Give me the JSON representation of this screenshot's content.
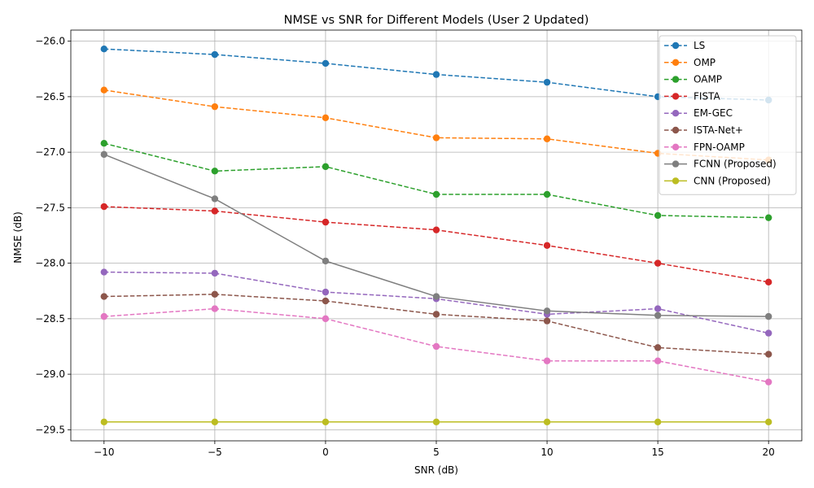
{
  "chart_data": {
    "type": "line",
    "title": "NMSE vs SNR for Different Models (User 2 Updated)",
    "xlabel": "SNR (dB)",
    "ylabel": "NMSE (dB)",
    "x": [
      -10,
      -5,
      0,
      5,
      10,
      15,
      20
    ],
    "xticks": [
      -10,
      -5,
      0,
      5,
      10,
      15,
      20
    ],
    "xtick_labels": [
      "−10",
      "−5",
      "0",
      "5",
      "10",
      "15",
      "20"
    ],
    "yticks": [
      -29.5,
      -29.0,
      -28.5,
      -28.0,
      -27.5,
      -27.0,
      -26.5,
      -26.0
    ],
    "ytick_labels": [
      "−29.5",
      "−29.0",
      "−28.5",
      "−28.0",
      "−27.5",
      "−27.0",
      "−26.5",
      "−26.0"
    ],
    "xlim": [
      -11.5,
      21.5
    ],
    "ylim": [
      -29.6,
      -25.9
    ],
    "grid": true,
    "legend_position": "top-right",
    "series": [
      {
        "name": "LS",
        "color": "#1f77b4",
        "dashed": true,
        "values": [
          -26.07,
          -26.12,
          -26.2,
          -26.3,
          -26.37,
          -26.5,
          -26.53
        ]
      },
      {
        "name": "OMP",
        "color": "#ff7f0e",
        "dashed": true,
        "values": [
          -26.44,
          -26.59,
          -26.69,
          -26.87,
          -26.88,
          -27.01,
          -27.07
        ]
      },
      {
        "name": "OAMP",
        "color": "#2ca02c",
        "dashed": true,
        "values": [
          -26.92,
          -27.17,
          -27.13,
          -27.38,
          -27.38,
          -27.57,
          -27.59
        ]
      },
      {
        "name": "FISTA",
        "color": "#d62728",
        "dashed": true,
        "values": [
          -27.49,
          -27.53,
          -27.63,
          -27.7,
          -27.84,
          -28.0,
          -28.17
        ]
      },
      {
        "name": "EM-GEC",
        "color": "#9467bd",
        "dashed": true,
        "values": [
          -28.08,
          -28.09,
          -28.26,
          -28.32,
          -28.46,
          -28.41,
          -28.63
        ]
      },
      {
        "name": "ISTA-Net+",
        "color": "#8c564b",
        "dashed": true,
        "values": [
          -28.3,
          -28.28,
          -28.34,
          -28.46,
          -28.52,
          -28.76,
          -28.82
        ]
      },
      {
        "name": "FPN-OAMP",
        "color": "#e377c2",
        "dashed": true,
        "values": [
          -28.48,
          -28.41,
          -28.5,
          -28.75,
          -28.88,
          -28.88,
          -29.07
        ]
      },
      {
        "name": "FCNN (Proposed)",
        "color": "#7f7f7f",
        "dashed": false,
        "values": [
          -27.02,
          -27.42,
          -27.98,
          -28.3,
          -28.43,
          -28.47,
          -28.48
        ]
      },
      {
        "name": "CNN (Proposed)",
        "color": "#bcbd22",
        "dashed": false,
        "values": [
          -29.43,
          -29.43,
          -29.43,
          -29.43,
          -29.43,
          -29.43,
          -29.43
        ]
      }
    ]
  }
}
